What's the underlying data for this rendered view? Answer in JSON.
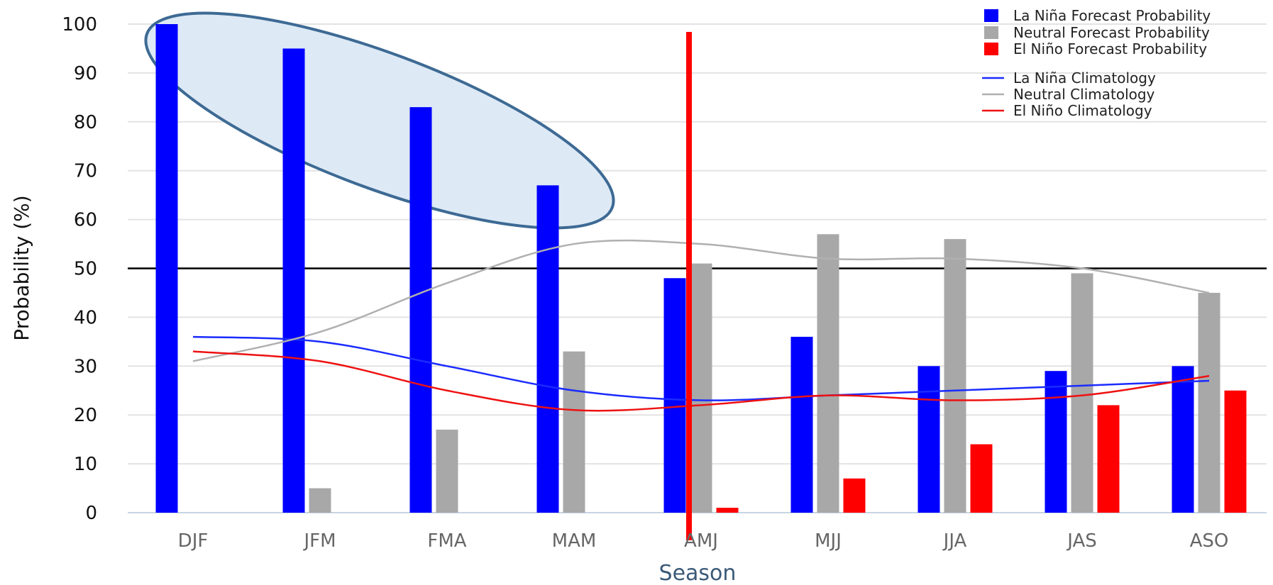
{
  "chart_data": {
    "type": "bar",
    "xlabel": "Season",
    "ylabel": "Probability (%)",
    "ylim": [
      0,
      100
    ],
    "yticks": [
      0,
      10,
      20,
      30,
      40,
      50,
      60,
      70,
      80,
      90,
      100
    ],
    "grid": true,
    "legend_position": "top-right",
    "reference_line": 50,
    "categories": [
      "DJF",
      "JFM",
      "FMA",
      "MAM",
      "AMJ",
      "MJJ",
      "JJA",
      "JAS",
      "ASO"
    ],
    "series": [
      {
        "name": "La Niña Forecast Probability",
        "kind": "bar",
        "color": "#0000ff",
        "values": [
          100,
          95,
          83,
          67,
          48,
          36,
          30,
          29,
          30
        ]
      },
      {
        "name": "Neutral Forecast Probability",
        "kind": "bar",
        "color": "#a8a8a8",
        "values": [
          0,
          5,
          17,
          33,
          51,
          57,
          56,
          49,
          45
        ]
      },
      {
        "name": "El Niño Forecast Probability",
        "kind": "bar",
        "color": "#ff0000",
        "values": [
          0,
          0,
          0,
          0,
          1,
          7,
          14,
          22,
          25
        ]
      },
      {
        "name": "La Niña Climatology",
        "kind": "line",
        "color": "#1a2bff",
        "values": [
          36,
          35,
          30,
          25,
          23,
          24,
          25,
          26,
          27
        ]
      },
      {
        "name": "Neutral Climatology",
        "kind": "line",
        "color": "#b0b0b0",
        "values": [
          31,
          37,
          47,
          55,
          55,
          52,
          52,
          50,
          45
        ]
      },
      {
        "name": "El Niño Climatology",
        "kind": "line",
        "color": "#ee1111",
        "values": [
          33,
          31,
          25,
          21,
          22,
          24,
          23,
          24,
          28
        ]
      }
    ],
    "annotations": {
      "highlight_ellipse": {
        "categories": [
          "DJF",
          "JFM",
          "FMA",
          "MAM"
        ],
        "series": "La Niña Forecast Probability",
        "fill": "#dde9f5",
        "stroke": "#3d6a94"
      },
      "vertical_marker": {
        "category": "AMJ",
        "color": "#ff0000"
      }
    }
  }
}
